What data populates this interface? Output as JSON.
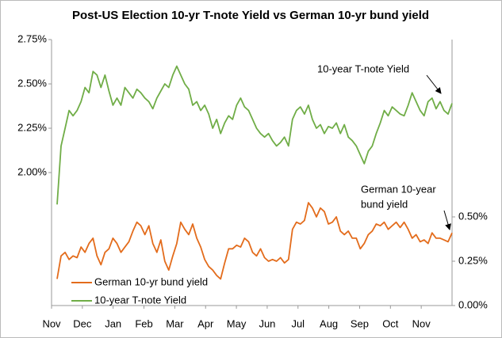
{
  "chart_data": {
    "type": "line",
    "title": "Post-US Election 10-yr T-note Yield vs German 10-yr bund yield",
    "x_tick_labels": [
      "Nov",
      "Dec",
      "Jan",
      "Feb",
      "Mar",
      "Apr",
      "May",
      "Jun",
      "Jul",
      "Aug",
      "Sep",
      "Oct",
      "Nov"
    ],
    "ylim": [
      1.25,
      2.75
    ],
    "yticks": [
      {
        "value": 2.0,
        "label": "2.00%"
      },
      {
        "value": 2.25,
        "label": "2.25%"
      },
      {
        "value": 2.5,
        "label": "2.50%"
      },
      {
        "value": 2.75,
        "label": "2.75%"
      }
    ],
    "y2lim": [
      0,
      1.5
    ],
    "y2ticks": [
      {
        "value": 0,
        "label": "0.00%"
      },
      {
        "value": 0.25,
        "label": "0.25%"
      },
      {
        "value": 0.5,
        "label": "0.50%"
      }
    ],
    "grid": false,
    "legend": "lower left",
    "annotations": [
      "10-year T-note Yield",
      "German 10-year",
      "bund yield"
    ],
    "series": [
      {
        "name": "German 10-yr bund yield",
        "color": "#e36c1c",
        "axis": "y2",
        "values": [
          0.15,
          0.28,
          0.3,
          0.26,
          0.28,
          0.27,
          0.33,
          0.3,
          0.35,
          0.38,
          0.28,
          0.23,
          0.3,
          0.32,
          0.38,
          0.35,
          0.3,
          0.33,
          0.36,
          0.42,
          0.47,
          0.45,
          0.4,
          0.45,
          0.35,
          0.3,
          0.37,
          0.25,
          0.2,
          0.28,
          0.35,
          0.47,
          0.43,
          0.4,
          0.46,
          0.38,
          0.33,
          0.26,
          0.22,
          0.2,
          0.17,
          0.15,
          0.24,
          0.32,
          0.32,
          0.34,
          0.33,
          0.38,
          0.36,
          0.3,
          0.28,
          0.32,
          0.27,
          0.25,
          0.26,
          0.25,
          0.27,
          0.24,
          0.26,
          0.43,
          0.47,
          0.46,
          0.48,
          0.58,
          0.55,
          0.5,
          0.55,
          0.53,
          0.46,
          0.47,
          0.5,
          0.42,
          0.4,
          0.42,
          0.38,
          0.38,
          0.32,
          0.35,
          0.4,
          0.42,
          0.46,
          0.45,
          0.47,
          0.43,
          0.45,
          0.47,
          0.44,
          0.47,
          0.43,
          0.38,
          0.4,
          0.36,
          0.37,
          0.35,
          0.41,
          0.38,
          0.38,
          0.37,
          0.36,
          0.41
        ]
      },
      {
        "name": "10-year T-note Yield",
        "color": "#70ad47",
        "axis": "y",
        "values": [
          1.82,
          2.15,
          2.25,
          2.35,
          2.32,
          2.35,
          2.4,
          2.48,
          2.45,
          2.57,
          2.55,
          2.48,
          2.55,
          2.46,
          2.38,
          2.42,
          2.38,
          2.48,
          2.45,
          2.42,
          2.47,
          2.45,
          2.42,
          2.4,
          2.36,
          2.42,
          2.46,
          2.5,
          2.48,
          2.55,
          2.6,
          2.55,
          2.5,
          2.47,
          2.38,
          2.4,
          2.35,
          2.38,
          2.33,
          2.25,
          2.3,
          2.22,
          2.28,
          2.32,
          2.3,
          2.38,
          2.42,
          2.37,
          2.35,
          2.3,
          2.25,
          2.22,
          2.2,
          2.22,
          2.18,
          2.15,
          2.17,
          2.2,
          2.15,
          2.3,
          2.35,
          2.37,
          2.33,
          2.38,
          2.3,
          2.25,
          2.27,
          2.22,
          2.26,
          2.25,
          2.28,
          2.22,
          2.27,
          2.2,
          2.18,
          2.15,
          2.1,
          2.05,
          2.12,
          2.15,
          2.22,
          2.28,
          2.35,
          2.32,
          2.37,
          2.35,
          2.33,
          2.32,
          2.38,
          2.45,
          2.4,
          2.35,
          2.32,
          2.4,
          2.42,
          2.36,
          2.4,
          2.35,
          2.33,
          2.39
        ]
      }
    ]
  }
}
